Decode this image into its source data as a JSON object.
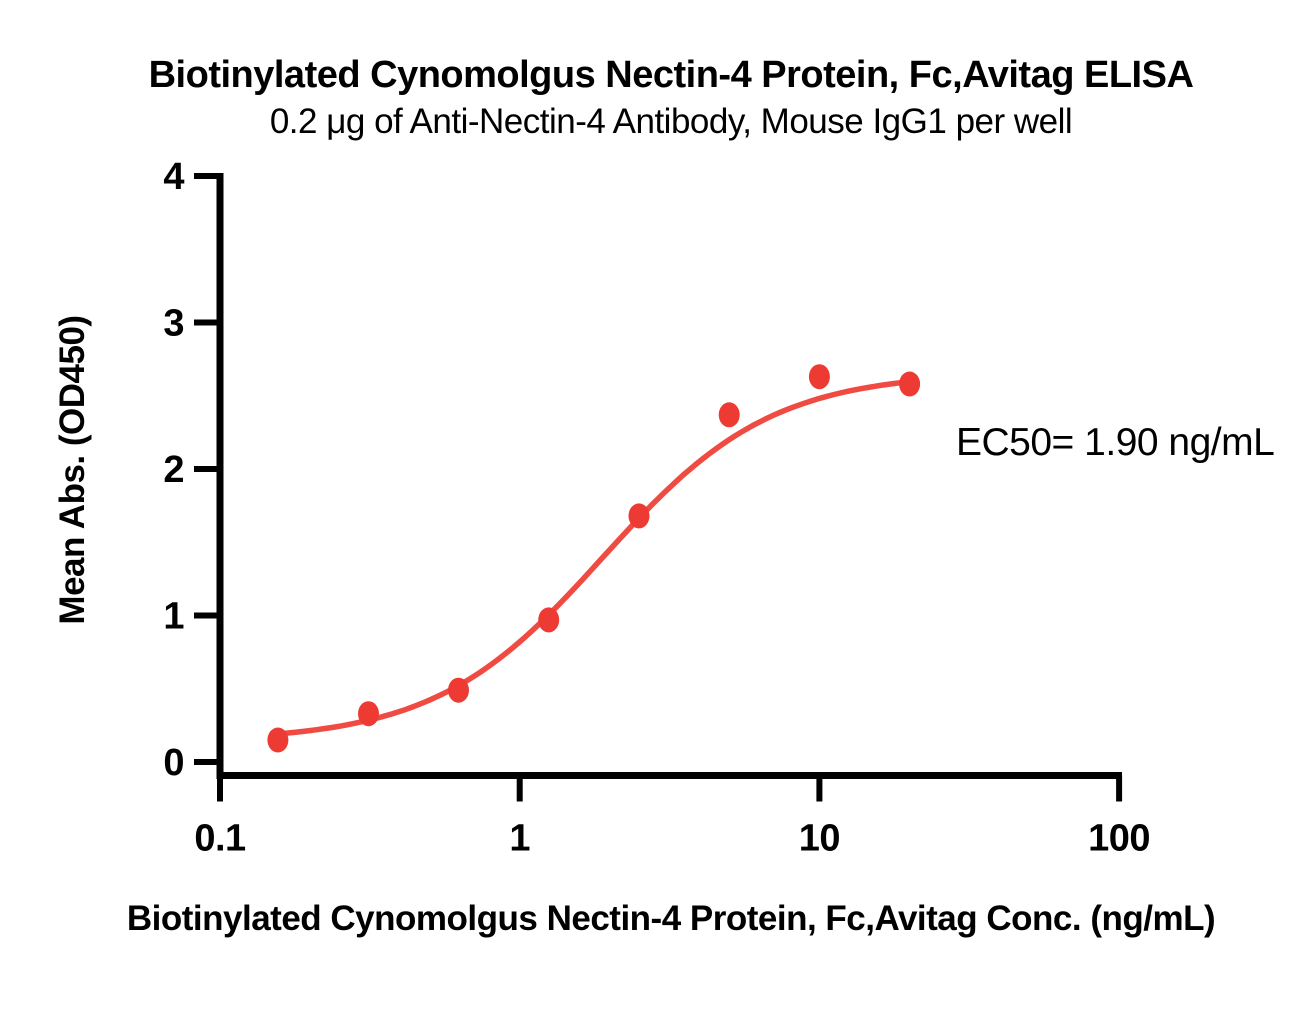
{
  "chart_data": {
    "type": "scatter",
    "title": "Biotinylated Cynomolgus Nectin-4 Protein, Fc,Avitag ELISA",
    "subtitle": "0.2 μg of Anti-Nectin-4 Antibody, Mouse IgG1 per well",
    "xlabel": "Biotinylated Cynomolgus Nectin-4 Protein, Fc,Avitag Conc. (ng/mL)",
    "ylabel": "Mean Abs. (OD450)",
    "annotation": "EC50= 1.90 ng/mL",
    "xscale": "log",
    "xlim": [
      0.1,
      100
    ],
    "ylim": [
      0,
      4
    ],
    "xticks": [
      0.1,
      1,
      10,
      100
    ],
    "xtick_labels": [
      "0.1",
      "1",
      "10",
      "100"
    ],
    "yticks": [
      0,
      1,
      2,
      3,
      4
    ],
    "ytick_labels": [
      "0",
      "1",
      "2",
      "3",
      "4"
    ],
    "grid": false,
    "legend_position": "none",
    "x": [
      0.156,
      0.313,
      0.625,
      1.25,
      2.5,
      5,
      10,
      20
    ],
    "y": [
      0.15,
      0.33,
      0.49,
      0.97,
      1.68,
      2.37,
      2.63,
      2.58
    ],
    "curve_fit": {
      "model": "4PL",
      "bottom": 0.14,
      "top": 2.66,
      "ec50": 1.9,
      "hill": 1.55
    },
    "curve_x_range": [
      0.156,
      20.4
    ],
    "colors": {
      "marker": "#ED3A33",
      "line": "#F04B43",
      "axis": "#000000",
      "background": "#FFFFFF"
    }
  }
}
